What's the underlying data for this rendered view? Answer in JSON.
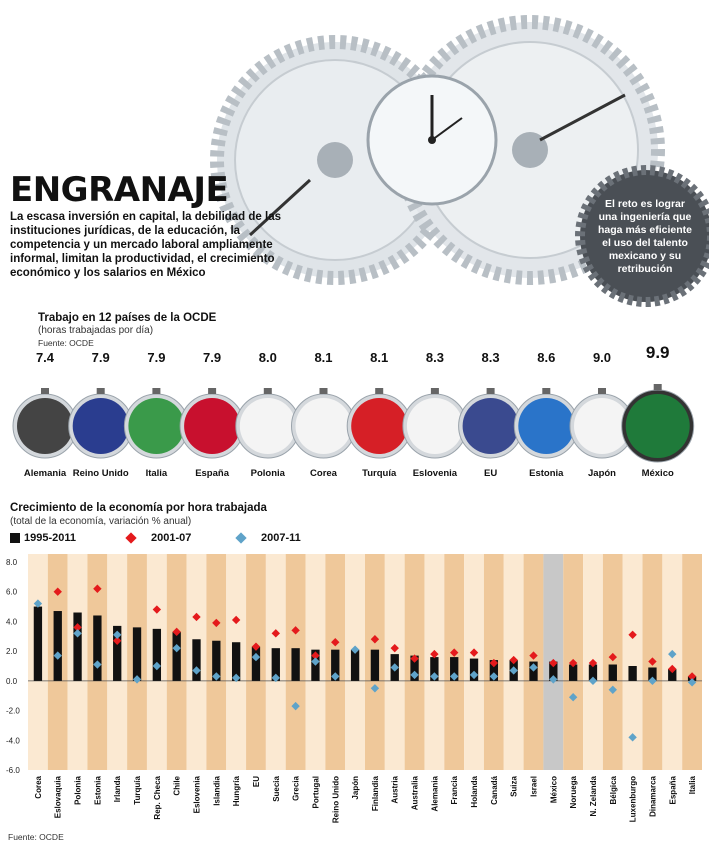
{
  "header": {
    "title": "ENGRANAJE",
    "intro": "La escasa inversión en capital, la debilidad de las instituciones jurídicas, de la educación, la competencia y un mercado laboral ampliamente informal, limitan la productividad, el crecimiento económico y los salarios en México",
    "callout": "El reto es lograr una ingeniería que haga más eficiente el uso del talento mexicano y su retribución"
  },
  "hours": {
    "title": "Trabajo en 12 países de la OCDE",
    "subtitle": "(horas trabajadas por día)",
    "source": "Fuente: OCDE"
  },
  "growth": {
    "title": "Crecimiento de la economía por hora trabajada",
    "subtitle": "(total de la economía, variación % anual)",
    "source": "Fuente: OCDE",
    "legend": [
      "1995-2011",
      "2001-07",
      "2007-11"
    ]
  },
  "colors": {
    "bar": "#111111",
    "diamond_2001_07": "#e41a1c",
    "diamond_2007_11": "#5fa3c9",
    "band_light": "#fbe9d2",
    "band_dark": "#efc89a",
    "mexico_highlight": "#c8c8c8"
  },
  "chart_data": [
    {
      "type": "bar",
      "title": "Trabajo en 12 países de la OCDE",
      "subtitle": "(horas trabajadas por día)",
      "categories": [
        "Alemania",
        "Reino Unido",
        "Italia",
        "España",
        "Polonia",
        "Corea",
        "Turquía",
        "Eslovenia",
        "EU",
        "Estonia",
        "Japón",
        "México"
      ],
      "values": [
        7.4,
        7.9,
        7.9,
        7.9,
        8.0,
        8.1,
        8.1,
        8.3,
        8.3,
        8.6,
        9.0,
        9.9
      ],
      "value_labels": [
        "7.4",
        "7.9",
        "7.9",
        "7.9",
        "8.0",
        "8.1",
        "8.1",
        "8.3",
        "8.3",
        "8.6",
        "9.0",
        "9.9"
      ],
      "highlight": "México"
    },
    {
      "type": "bar",
      "title": "Crecimiento de la economía por hora trabajada",
      "subtitle": "(total de la economía, variación % anual)",
      "categories": [
        "Corea",
        "Eslovaquia",
        "Polonia",
        "Estonia",
        "Irlanda",
        "Turquía",
        "Rep. Checa",
        "Chile",
        "Eslovenia",
        "Islandia",
        "Hungría",
        "EU",
        "Suecia",
        "Grecia",
        "Portugal",
        "Reino Unido",
        "Japón",
        "Finlandia",
        "Austria",
        "Australia",
        "Alemania",
        "Francia",
        "Holanda",
        "Canadá",
        "Suiza",
        "Israel",
        "México",
        "Noruega",
        "N. Zelanda",
        "Bélgica",
        "Luxenburgo",
        "Dinamarca",
        "España",
        "Italia"
      ],
      "series": [
        {
          "name": "1995-2011",
          "marker": "bar",
          "values": [
            5.0,
            4.7,
            4.6,
            4.4,
            3.7,
            3.6,
            3.5,
            3.3,
            2.8,
            2.7,
            2.6,
            2.3,
            2.2,
            2.2,
            2.1,
            2.1,
            2.1,
            2.1,
            1.8,
            1.7,
            1.6,
            1.6,
            1.5,
            1.4,
            1.4,
            1.3,
            1.3,
            1.1,
            1.1,
            1.1,
            1.0,
            0.9,
            0.8,
            0.3
          ]
        },
        {
          "name": "2001-07",
          "marker": "diamond",
          "values": [
            null,
            6.0,
            3.6,
            6.2,
            2.7,
            null,
            4.8,
            3.3,
            4.3,
            3.9,
            4.1,
            2.3,
            3.2,
            3.4,
            1.7,
            2.6,
            null,
            2.8,
            2.2,
            1.5,
            1.8,
            1.9,
            1.9,
            1.2,
            1.4,
            1.7,
            1.2,
            1.2,
            1.2,
            1.6,
            3.1,
            1.3,
            0.8,
            0.3
          ]
        },
        {
          "name": "2007-11",
          "marker": "diamond",
          "values": [
            5.2,
            1.7,
            3.2,
            1.1,
            3.1,
            0.1,
            1.0,
            2.2,
            0.7,
            0.3,
            0.2,
            1.6,
            0.2,
            -1.7,
            1.3,
            0.3,
            2.1,
            -0.5,
            0.9,
            0.4,
            0.3,
            0.3,
            0.4,
            0.3,
            0.7,
            0.9,
            0.1,
            -1.1,
            0.0,
            -0.6,
            -3.8,
            0.0,
            1.8,
            -0.1
          ]
        }
      ],
      "ylim": [
        -6.0,
        8.0
      ],
      "yticks": [
        8.0,
        6.0,
        4.0,
        2.0,
        0.0,
        -2.0,
        -4.0,
        -6.0
      ],
      "ytick_labels": [
        "8.0",
        "6.0",
        "4.0",
        "2.0",
        "0.0",
        "-2.0",
        "-4.0",
        "-6.0"
      ],
      "legend": "top-left",
      "grid": false,
      "highlight": "México"
    }
  ]
}
